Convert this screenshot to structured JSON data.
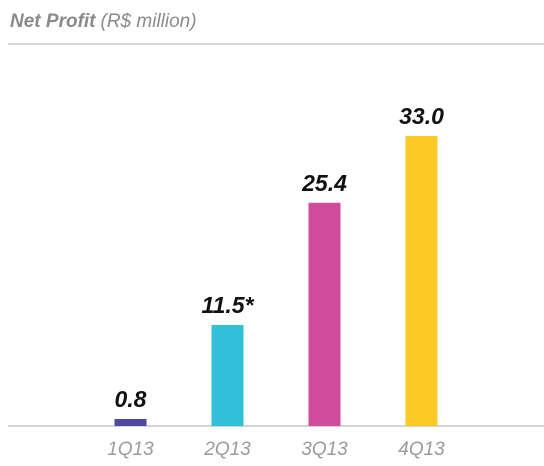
{
  "chart_data": {
    "type": "bar",
    "title": "Net Profit",
    "subtitle": "(R$ million)",
    "categories": [
      "1Q13",
      "2Q13",
      "3Q13",
      "4Q13"
    ],
    "values": [
      0.8,
      11.5,
      25.4,
      33.0
    ],
    "value_labels": [
      "0.8",
      "11.5*",
      "25.4",
      "33.0"
    ],
    "colors": [
      "#4b4a9e",
      "#30c1d9",
      "#d14b9c",
      "#fcc926"
    ]
  }
}
